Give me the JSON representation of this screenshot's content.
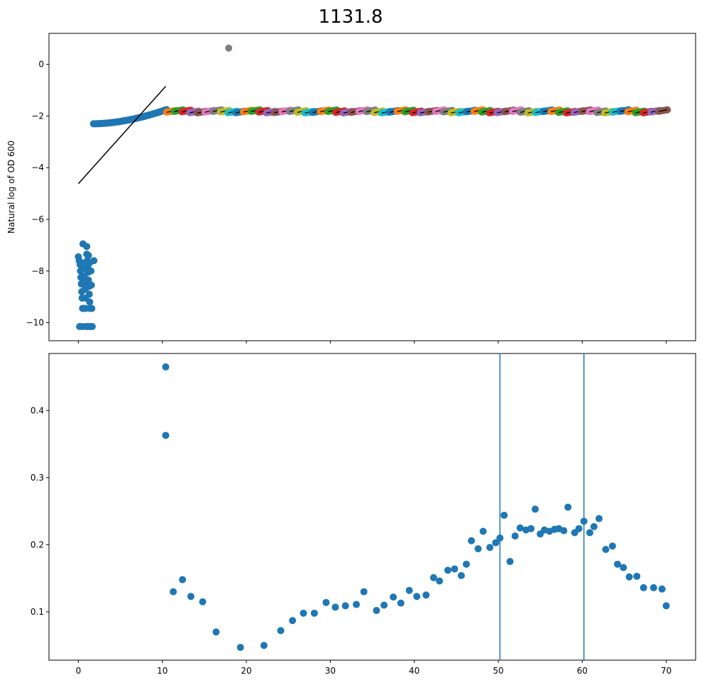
{
  "title": "1131.8",
  "colors": {
    "primary": "#1f77b4",
    "fit_line": "#000000",
    "outlier": "#7f7f7f",
    "cycle": [
      "#ff7f0e",
      "#2ca02c",
      "#d62728",
      "#9467bd",
      "#8c564b",
      "#e377c2",
      "#7f7f7f",
      "#bcbd22",
      "#17becf",
      "#1f77b4"
    ]
  },
  "chart_data": [
    {
      "type": "scatter",
      "title": "1131.8",
      "xlabel": "",
      "ylabel": "Natural log of OD 600",
      "xlim": [
        -3.5,
        73.5
      ],
      "ylim": [
        -10.7,
        1.2
      ],
      "xticks": [
        0,
        10,
        20,
        30,
        40,
        50,
        60,
        70
      ],
      "xtick_labels_visible": false,
      "yticks": [
        0,
        -2,
        -4,
        -6,
        -8,
        -10
      ],
      "ytick_labels": [
        "0",
        "−2",
        "−4",
        "−6",
        "−8",
        "−10"
      ],
      "grid": false,
      "noise_points": [
        [
          0.0,
          -7.45
        ],
        [
          0.1,
          -7.6
        ],
        [
          0.2,
          -7.75
        ],
        [
          0.25,
          -8.0
        ],
        [
          0.3,
          -8.25
        ],
        [
          0.35,
          -8.5
        ],
        [
          0.4,
          -8.8
        ],
        [
          0.45,
          -9.05
        ],
        [
          0.5,
          -9.45
        ],
        [
          0.5,
          -10.15
        ],
        [
          0.55,
          -6.95
        ],
        [
          0.6,
          -7.7
        ],
        [
          0.65,
          -7.9
        ],
        [
          0.7,
          -8.2
        ],
        [
          0.75,
          -8.45
        ],
        [
          0.8,
          -8.7
        ],
        [
          0.85,
          -9.05
        ],
        [
          0.9,
          -9.45
        ],
        [
          0.95,
          -10.15
        ],
        [
          1.0,
          -7.05
        ],
        [
          1.0,
          -7.35
        ],
        [
          1.05,
          -7.6
        ],
        [
          1.1,
          -7.85
        ],
        [
          1.15,
          -8.05
        ],
        [
          1.2,
          -8.35
        ],
        [
          1.25,
          -8.6
        ],
        [
          1.3,
          -8.9
        ],
        [
          1.35,
          -9.2
        ],
        [
          1.4,
          -9.45
        ],
        [
          1.4,
          -10.15
        ],
        [
          1.2,
          -7.4
        ],
        [
          1.3,
          -7.7
        ],
        [
          1.5,
          -8.0
        ],
        [
          1.55,
          -8.55
        ],
        [
          1.6,
          -9.45
        ],
        [
          1.65,
          -10.15
        ],
        [
          1.85,
          -7.6
        ],
        [
          0.15,
          -10.15
        ],
        [
          1.15,
          -10.15
        ],
        [
          0.7,
          -9.45
        ]
      ],
      "growth_start": [
        1.8,
        -2.3
      ],
      "growth_end": [
        10.5,
        -1.75
      ],
      "window_start": 10.5,
      "window_end": 70.0,
      "window_count": 65,
      "plateau_level": -1.82,
      "outlier_point": [
        17.9,
        0.63
      ],
      "fit_lines": [
        {
          "x": [
            0.0,
            10.4
          ],
          "y": [
            -4.62,
            -0.85
          ]
        }
      ]
    },
    {
      "type": "scatter",
      "title": "",
      "xlabel": "",
      "ylabel": "",
      "xlim": [
        -3.5,
        73.5
      ],
      "ylim": [
        0.028,
        0.485
      ],
      "xticks": [
        0,
        10,
        20,
        30,
        40,
        50,
        60,
        70
      ],
      "xtick_labels": [
        "0",
        "10",
        "20",
        "30",
        "40",
        "50",
        "60",
        "70"
      ],
      "yticks": [
        0.1,
        0.2,
        0.3,
        0.4
      ],
      "ytick_labels": [
        "0.1",
        "0.2",
        "0.3",
        "0.4"
      ],
      "grid": false,
      "vlines": [
        50.2,
        60.2
      ],
      "points": [
        [
          10.4,
          0.465
        ],
        [
          10.4,
          0.363
        ],
        [
          11.3,
          0.13
        ],
        [
          12.4,
          0.148
        ],
        [
          13.4,
          0.123
        ],
        [
          14.8,
          0.115
        ],
        [
          16.4,
          0.07
        ],
        [
          19.3,
          0.047
        ],
        [
          22.1,
          0.05
        ],
        [
          24.1,
          0.072
        ],
        [
          25.5,
          0.087
        ],
        [
          26.8,
          0.098
        ],
        [
          28.1,
          0.098
        ],
        [
          29.5,
          0.114
        ],
        [
          30.6,
          0.107
        ],
        [
          31.8,
          0.109
        ],
        [
          33.1,
          0.111
        ],
        [
          34.0,
          0.13
        ],
        [
          35.5,
          0.102
        ],
        [
          36.4,
          0.11
        ],
        [
          37.5,
          0.122
        ],
        [
          38.4,
          0.113
        ],
        [
          39.4,
          0.132
        ],
        [
          40.3,
          0.123
        ],
        [
          41.4,
          0.125
        ],
        [
          42.3,
          0.151
        ],
        [
          43.0,
          0.146
        ],
        [
          44.0,
          0.162
        ],
        [
          44.8,
          0.164
        ],
        [
          45.6,
          0.154
        ],
        [
          46.2,
          0.171
        ],
        [
          46.8,
          0.206
        ],
        [
          47.6,
          0.194
        ],
        [
          48.2,
          0.22
        ],
        [
          49.0,
          0.196
        ],
        [
          49.7,
          0.203
        ],
        [
          50.2,
          0.21
        ],
        [
          50.7,
          0.244
        ],
        [
          51.4,
          0.175
        ],
        [
          52.0,
          0.213
        ],
        [
          52.6,
          0.225
        ],
        [
          53.3,
          0.222
        ],
        [
          53.9,
          0.224
        ],
        [
          54.4,
          0.253
        ],
        [
          55.0,
          0.216
        ],
        [
          55.5,
          0.222
        ],
        [
          56.1,
          0.22
        ],
        [
          56.7,
          0.223
        ],
        [
          57.2,
          0.224
        ],
        [
          57.8,
          0.221
        ],
        [
          58.3,
          0.256
        ],
        [
          59.1,
          0.218
        ],
        [
          59.6,
          0.224
        ],
        [
          60.2,
          0.235
        ],
        [
          60.9,
          0.218
        ],
        [
          61.4,
          0.227
        ],
        [
          62.0,
          0.239
        ],
        [
          62.8,
          0.193
        ],
        [
          63.6,
          0.198
        ],
        [
          64.2,
          0.171
        ],
        [
          64.9,
          0.166
        ],
        [
          65.6,
          0.152
        ],
        [
          66.5,
          0.153
        ],
        [
          67.3,
          0.136
        ],
        [
          68.5,
          0.136
        ],
        [
          69.5,
          0.134
        ],
        [
          70.0,
          0.109
        ]
      ]
    }
  ]
}
